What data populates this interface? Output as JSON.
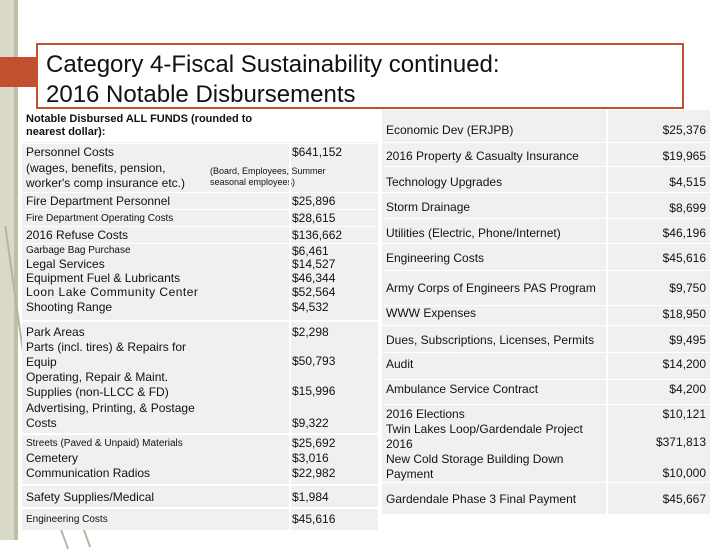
{
  "title": {
    "line1": "Category 4-Fiscal Sustainability continued:",
    "line2": "2016 Notable Disbursements"
  },
  "left_table": {
    "header": "Notable Disbursed ALL FUNDS (rounded to nearest dollar):",
    "rows": [
      {
        "label": "Personnel Costs\n(wages, benefits, pension,\nworker's comp insurance etc.)",
        "note": "(Board, Employees, Summer seasonal employees)",
        "amount": "$641,152"
      },
      {
        "label": "Fire Department Personnel",
        "amount": "$25,896"
      },
      {
        "label": "Fire Department Operating Costs",
        "amount": "$28,615"
      },
      {
        "label": "2016 Refuse Costs",
        "amount": "$136,662"
      },
      {
        "label": "Garbage Bag Purchase",
        "amount": "$6,461"
      },
      {
        "label": "Legal Services",
        "amount": "$14,527"
      },
      {
        "label": "Equipment Fuel & Lubricants",
        "amount": "$46,344"
      },
      {
        "label": "Loon Lake Community Center",
        "amount": "$52,564"
      },
      {
        "label": "Shooting Range",
        "amount": "$4,532"
      },
      {
        "label": "Park Areas",
        "amount": "$2,298"
      },
      {
        "label": "Parts (incl. tires) & Repairs for Equip",
        "amount": "$50,793"
      },
      {
        "label": "Operating, Repair & Maint. Supplies (non-LLCC & FD)",
        "amount": "$15,996"
      },
      {
        "label": "Advertising, Printing, & Postage Costs",
        "amount": "$9,322"
      },
      {
        "label": "Streets (Paved & Unpaid) Materials",
        "amount": "$25,692"
      },
      {
        "label": "Cemetery",
        "amount": "$3,016"
      },
      {
        "label": "Communication Radios",
        "amount": "$22,982"
      },
      {
        "label": "Safety Supplies/Medical",
        "amount": "$1,984"
      },
      {
        "label": "Engineering Costs",
        "amount": "$45,616"
      }
    ]
  },
  "right_table": {
    "rows": [
      {
        "label": "Economic Dev (ERJPB)",
        "amount": "$25,376"
      },
      {
        "label": "2016 Property & Casualty Insurance",
        "amount": "$19,965"
      },
      {
        "label": "Technology Upgrades",
        "amount": "$4,515"
      },
      {
        "label": "Storm Drainage",
        "amount": "$8,699"
      },
      {
        "label": "Utilities (Electric, Phone/Internet)",
        "amount": "$46,196"
      },
      {
        "label": "Engineering Costs",
        "amount": "$45,616"
      },
      {
        "label": "Army Corps of Engineers PAS Program",
        "amount": "$9,750"
      },
      {
        "label": "WWW  Expenses",
        "amount": "$18,950"
      },
      {
        "label": "Dues, Subscriptions, Licenses, Permits",
        "amount": "$9,495"
      },
      {
        "label": "Audit",
        "amount": "$14,200"
      },
      {
        "label": "Ambulance Service Contract",
        "amount": "$4,200"
      },
      {
        "label": "2016 Elections",
        "amount": "$10,121"
      },
      {
        "label": "Twin Lakes Loop/Gardendale Project 2016",
        "amount": "$371,813"
      },
      {
        "label": "New Cold Storage Building Down Payment",
        "amount": "$10,000"
      },
      {
        "label": "Gardendale Phase 3 Final Payment",
        "amount": "$45,667"
      }
    ]
  }
}
